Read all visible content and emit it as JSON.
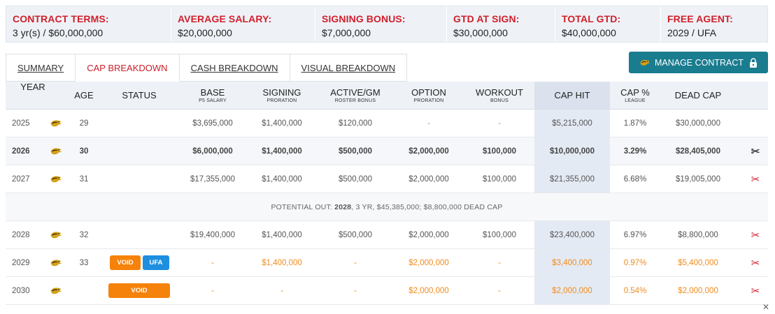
{
  "summary": [
    {
      "label": "CONTRACT TERMS:",
      "value": "3 yr(s) / $60,000,000"
    },
    {
      "label": "AVERAGE SALARY:",
      "value": "$20,000,000"
    },
    {
      "label": "SIGNING BONUS:",
      "value": "$7,000,000"
    },
    {
      "label": "GTD AT SIGN:",
      "value": "$30,000,000"
    },
    {
      "label": "TOTAL GTD:",
      "value": "$40,000,000"
    },
    {
      "label": "FREE AGENT:",
      "value": "2029 / UFA"
    }
  ],
  "tabs": [
    "SUMMARY",
    "CAP BREAKDOWN",
    "CASH BREAKDOWN",
    "VISUAL BREAKDOWN"
  ],
  "active_tab": "CAP BREAKDOWN",
  "manage_button": "MANAGE CONTRACT",
  "columns": {
    "year": "YEAR",
    "age": "AGE",
    "status": "STATUS",
    "base": "BASE",
    "base_sub": "P5 SALARY",
    "signing": "SIGNING",
    "signing_sub": "PRORATION",
    "active": "ACTIVE/GM",
    "active_sub": "ROSTER BONUS",
    "option": "OPTION",
    "option_sub": "PRORATION",
    "workout": "WORKOUT",
    "workout_sub": "BONUS",
    "cap_hit": "CAP HIT",
    "cap_pct": "CAP %",
    "cap_pct_sub": "LEAGUE",
    "dead_cap": "DEAD CAP"
  },
  "rows": [
    {
      "year": "2025",
      "age": "29",
      "base": "$3,695,000",
      "signing": "$1,400,000",
      "active": "$120,000",
      "option": "-",
      "workout": "-",
      "cap_hit": "$5,215,000",
      "cap_pct": "1.87%",
      "dead_cap": "$30,000,000"
    },
    {
      "year": "2026",
      "age": "30",
      "base": "$6,000,000",
      "signing": "$1,400,000",
      "active": "$500,000",
      "option": "$2,000,000",
      "workout": "$100,000",
      "cap_hit": "$10,000,000",
      "cap_pct": "3.29%",
      "dead_cap": "$28,405,000"
    },
    {
      "year": "2027",
      "age": "31",
      "base": "$17,355,000",
      "signing": "$1,400,000",
      "active": "$500,000",
      "option": "$2,000,000",
      "workout": "$100,000",
      "cap_hit": "$21,355,000",
      "cap_pct": "6.68%",
      "dead_cap": "$19,005,000"
    },
    {
      "year": "2028",
      "age": "32",
      "base": "$19,400,000",
      "signing": "$1,400,000",
      "active": "$500,000",
      "option": "$2,000,000",
      "workout": "$100,000",
      "cap_hit": "$23,400,000",
      "cap_pct": "6.97%",
      "dead_cap": "$8,800,000"
    },
    {
      "year": "2029",
      "age": "33",
      "badges": [
        "VOID",
        "UFA"
      ],
      "base": "-",
      "signing": "$1,400,000",
      "active": "-",
      "option": "$2,000,000",
      "workout": "-",
      "cap_hit": "$3,400,000",
      "cap_pct": "0.97%",
      "dead_cap": "$5,400,000"
    },
    {
      "year": "2030",
      "age": "",
      "badges": [
        "VOID"
      ],
      "base": "-",
      "signing": "-",
      "active": "-",
      "option": "$2,000,000",
      "workout": "-",
      "cap_hit": "$2,000,000",
      "cap_pct": "0.54%",
      "dead_cap": "$2,000,000"
    }
  ],
  "potential_out": {
    "prefix": "POTENTIAL OUT:",
    "year": "2028",
    "details": ", 3 YR, $45,385,000; $8,800,000 DEAD CAP"
  },
  "icons": {
    "team_logo": "jaguar-logo-icon",
    "release": "scissors-icon",
    "lock": "lock-icon",
    "close": "close-icon"
  },
  "colors": {
    "accent_red": "#d11f2a",
    "button_teal": "#1a7c8f",
    "void_orange": "#f5820a",
    "ufa_blue": "#1e8fe0",
    "cap_col": "#e4eaf3"
  }
}
